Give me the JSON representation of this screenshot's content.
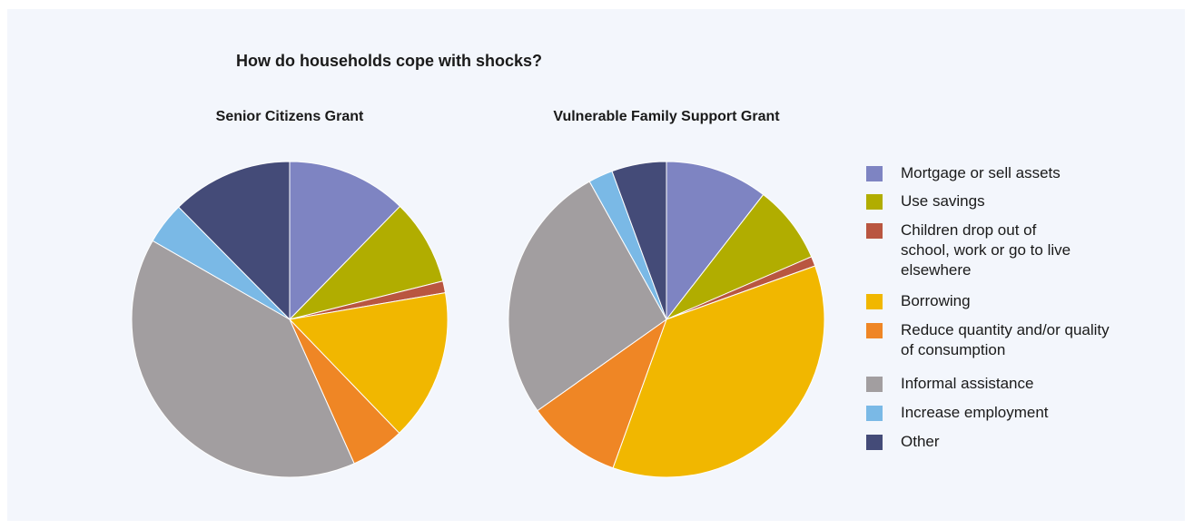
{
  "title": "How do households cope with shocks?",
  "colors": {
    "mortgage": "#7e84c2",
    "savings": "#b1ad00",
    "children": "#b95640",
    "borrowing": "#f1b700",
    "reduce": "#ef8625",
    "informal": "#a29ea0",
    "employment": "#7ab9e6",
    "other": "#444b78"
  },
  "legend": [
    {
      "key": "mortgage",
      "label": "Mortgage or sell assets"
    },
    {
      "key": "savings",
      "label": "Use savings"
    },
    {
      "key": "children",
      "label": "Children drop out of school, work or go to live elsewhere"
    },
    {
      "key": "borrowing",
      "label": "Borrowing"
    },
    {
      "key": "reduce",
      "label": "Reduce quantity and/or quality of consumption"
    },
    {
      "key": "informal",
      "label": "Informal assistance"
    },
    {
      "key": "employment",
      "label": "Increase employment"
    },
    {
      "key": "other",
      "label": "Other"
    }
  ],
  "chart_data": [
    {
      "type": "pie",
      "title": "Senior Citizens Grant",
      "categories": [
        "Mortgage or sell assets",
        "Use savings",
        "Children drop out of school, work or go to live elsewhere",
        "Borrowing",
        "Reduce quantity and/or quality of consumption",
        "Informal assistance",
        "Increase employment",
        "Other"
      ],
      "keys": [
        "mortgage",
        "savings",
        "children",
        "borrowing",
        "reduce",
        "informal",
        "employment",
        "other"
      ],
      "values": [
        12.3,
        8.8,
        1.2,
        15.5,
        5.5,
        40.0,
        4.3,
        12.4
      ]
    },
    {
      "type": "pie",
      "title": "Vulnerable Family Support Grant",
      "categories": [
        "Mortgage or sell assets",
        "Use savings",
        "Children drop out of school, work or go to live elsewhere",
        "Borrowing",
        "Reduce quantity and/or quality of consumption",
        "Informal assistance",
        "Increase employment",
        "Other"
      ],
      "keys": [
        "mortgage",
        "savings",
        "children",
        "borrowing",
        "reduce",
        "informal",
        "employment",
        "other"
      ],
      "values": [
        10.5,
        8.0,
        1.0,
        36.0,
        9.7,
        26.7,
        2.5,
        5.6
      ]
    }
  ]
}
